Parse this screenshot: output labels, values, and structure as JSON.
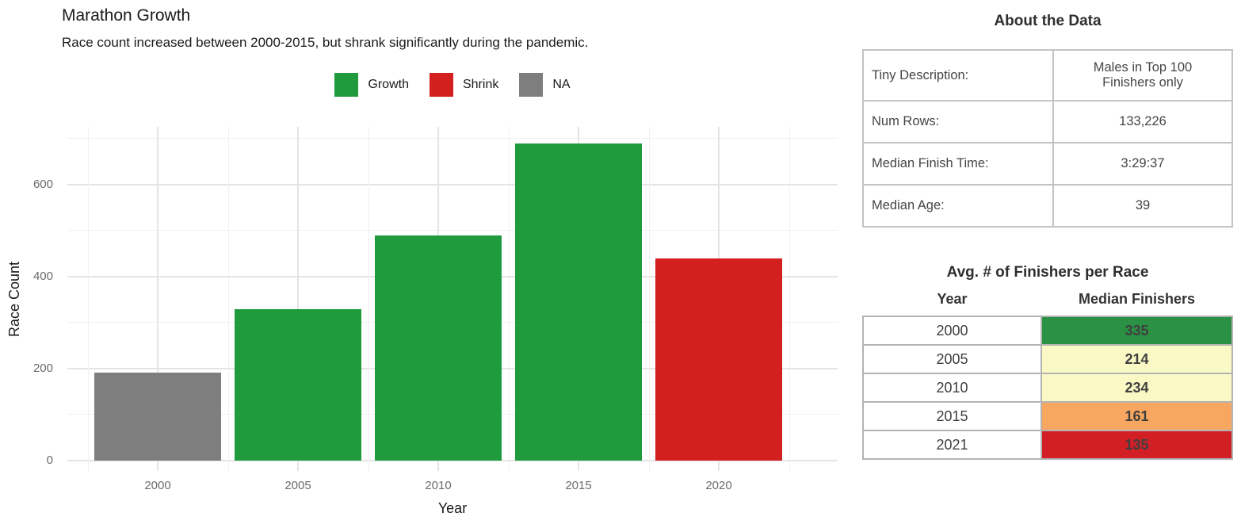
{
  "chart_data": [
    {
      "type": "bar",
      "title": "Marathon Growth",
      "subtitle": "Race count increased between 2000-2015, but shrank significantly during the pandemic.",
      "xlabel": "Year",
      "ylabel": "Race Count",
      "categories": [
        "2000",
        "2005",
        "2010",
        "2015",
        "2020"
      ],
      "values": [
        192,
        330,
        490,
        690,
        440
      ],
      "bar_groups": [
        "NA",
        "Growth",
        "Growth",
        "Growth",
        "Shrink"
      ],
      "bar_colors": [
        "#7E7E7E",
        "#1F9B3E",
        "#1F9B3E",
        "#1F9B3E",
        "#D41F1F"
      ],
      "legend": [
        {
          "label": "Growth",
          "color": "#1F9B3E"
        },
        {
          "label": "Shrink",
          "color": "#D41F1F"
        },
        {
          "label": "NA",
          "color": "#7E7E7E"
        }
      ],
      "legend_position": "top",
      "yticks": [
        0,
        200,
        400,
        600
      ],
      "yticks_minor": [
        100,
        300,
        500,
        700
      ],
      "ylim": [
        0,
        725
      ],
      "grid": true
    },
    {
      "type": "table",
      "title": "Avg. # of Finishers per Race",
      "columns": [
        "Year",
        "Median Finishers"
      ],
      "rows": [
        {
          "year": "2000",
          "value": "335",
          "color": "#2B9144"
        },
        {
          "year": "2005",
          "value": "214",
          "color": "#FAF9C6"
        },
        {
          "year": "2010",
          "value": "234",
          "color": "#FAF9C6"
        },
        {
          "year": "2015",
          "value": "161",
          "color": "#F8A760"
        },
        {
          "year": "2021",
          "value": "135",
          "color": "#D21F26"
        }
      ]
    }
  ],
  "about": {
    "title": "About the Data",
    "rows": [
      {
        "label": "Tiny Description:",
        "value": "Males in Top 100\nFinishers only"
      },
      {
        "label": "Num Rows:",
        "value": "133,226"
      },
      {
        "label": "Median Finish Time:",
        "value": "3:29:37"
      },
      {
        "label": "Median Age:",
        "value": "39"
      }
    ]
  }
}
